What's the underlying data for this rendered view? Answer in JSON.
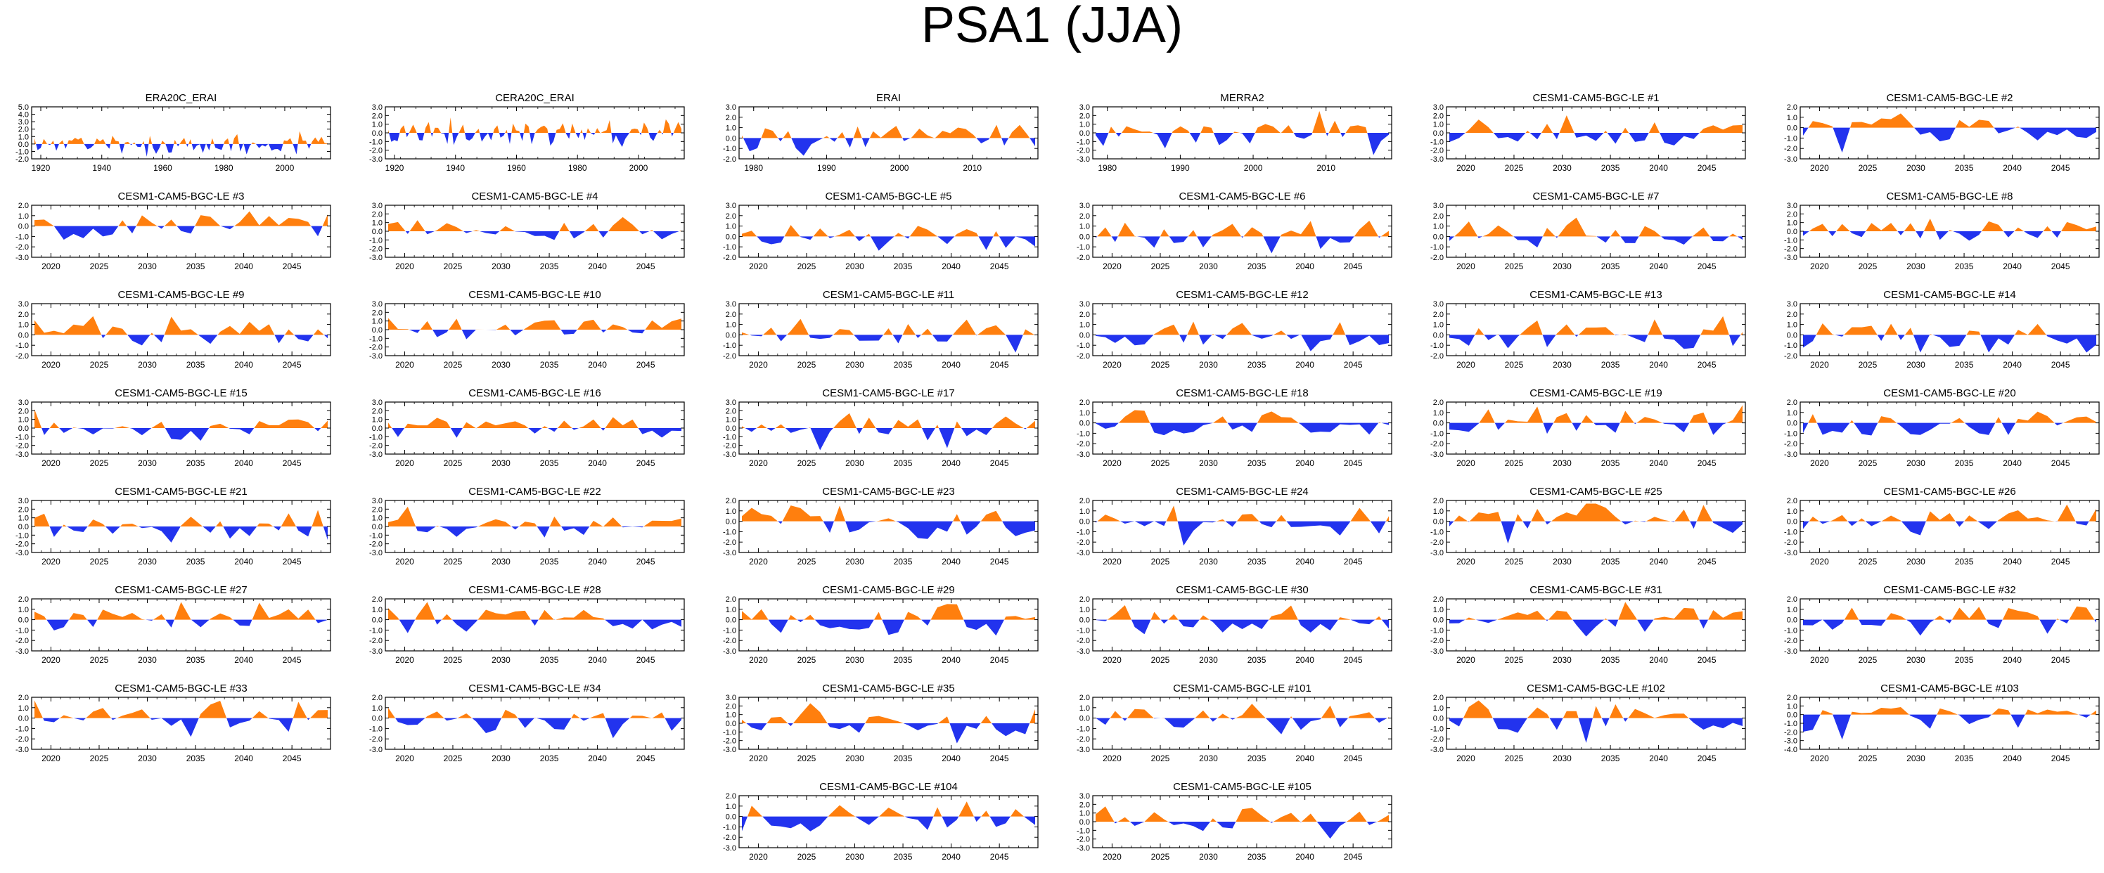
{
  "title": "PSA1 (JJA)",
  "colors": {
    "positive": "#ff7f0e",
    "negative": "#2233ee",
    "axis": "#000000"
  },
  "chart_data": [
    {
      "type": "area",
      "title": "ERA20C_ERAI",
      "ylim": [
        -2.0,
        5.0
      ],
      "yticks": [
        "5.0",
        "4.0",
        "3.0",
        "2.0",
        "1.0",
        "0.0",
        "-1.0",
        "-2.0"
      ],
      "xlim": [
        1917,
        2015
      ],
      "xticks": [
        1920,
        1940,
        1960,
        1980,
        2000
      ],
      "seed": 11
    },
    {
      "type": "area",
      "title": "CERA20C_ERAI",
      "ylim": [
        -3.0,
        3.0
      ],
      "yticks": [
        "3.0",
        "2.0",
        "1.0",
        "0.0",
        "-1.0",
        "-2.0",
        "-3.0"
      ],
      "xlim": [
        1917,
        2015
      ],
      "xticks": [
        1920,
        1940,
        1960,
        1980,
        2000
      ],
      "seed": 12
    },
    {
      "type": "area",
      "title": "ERAI",
      "ylim": [
        -2.0,
        3.0
      ],
      "yticks": [
        "3.0",
        "2.0",
        "1.0",
        "0.0",
        "-1.0",
        "-2.0"
      ],
      "xlim": [
        1978,
        2019
      ],
      "xticks": [
        1980,
        1990,
        2000,
        2010
      ],
      "seed": 13
    },
    {
      "type": "area",
      "title": "MERRA2",
      "ylim": [
        -3.0,
        3.0
      ],
      "yticks": [
        "3.0",
        "2.0",
        "1.0",
        "0.0",
        "-1.0",
        "-2.0",
        "-3.0"
      ],
      "xlim": [
        1978,
        2019
      ],
      "xticks": [
        1980,
        1990,
        2000,
        2010
      ],
      "seed": 14
    },
    {
      "type": "area",
      "title": "CESM1-CAM5-BGC-LE #1",
      "ylim": [
        -3.0,
        3.0
      ],
      "yticks": [
        "3.0",
        "2.0",
        "1.0",
        "0.0",
        "-1.0",
        "-2.0",
        "-3.0"
      ],
      "xlim": [
        2018,
        2049
      ],
      "xticks": [
        2020,
        2025,
        2030,
        2035,
        2040,
        2045
      ],
      "seed": 15
    },
    {
      "type": "area",
      "title": "CESM1-CAM5-BGC-LE #2",
      "ylim": [
        -3.0,
        2.0
      ],
      "yticks": [
        "2.0",
        "1.0",
        "0.0",
        "-1.0",
        "-2.0",
        "-3.0"
      ],
      "xlim": [
        2018,
        2049
      ],
      "xticks": [
        2020,
        2025,
        2030,
        2035,
        2040,
        2045
      ],
      "seed": 16
    },
    {
      "type": "area",
      "title": "CESM1-CAM5-BGC-LE #3",
      "ylim": [
        -3.0,
        2.0
      ],
      "yticks": [
        "2.0",
        "1.0",
        "0.0",
        "-1.0",
        "-2.0",
        "-3.0"
      ],
      "xlim": [
        2018,
        2049
      ],
      "xticks": [
        2020,
        2025,
        2030,
        2035,
        2040,
        2045
      ],
      "seed": 17
    },
    {
      "type": "area",
      "title": "CESM1-CAM5-BGC-LE #4",
      "ylim": [
        -3.0,
        3.0
      ],
      "yticks": [
        "3.0",
        "2.0",
        "1.0",
        "0.0",
        "-1.0",
        "-2.0",
        "-3.0"
      ],
      "xlim": [
        2018,
        2049
      ],
      "xticks": [
        2020,
        2025,
        2030,
        2035,
        2040,
        2045
      ],
      "seed": 18
    },
    {
      "type": "area",
      "title": "CESM1-CAM5-BGC-LE #5",
      "ylim": [
        -2.0,
        3.0
      ],
      "yticks": [
        "3.0",
        "2.0",
        "1.0",
        "0.0",
        "-1.0",
        "-2.0"
      ],
      "xlim": [
        2018,
        2049
      ],
      "xticks": [
        2020,
        2025,
        2030,
        2035,
        2040,
        2045
      ],
      "seed": 19
    },
    {
      "type": "area",
      "title": "CESM1-CAM5-BGC-LE #6",
      "ylim": [
        -2.0,
        3.0
      ],
      "yticks": [
        "3.0",
        "2.0",
        "1.0",
        "0.0",
        "-1.0",
        "-2.0"
      ],
      "xlim": [
        2018,
        2049
      ],
      "xticks": [
        2020,
        2025,
        2030,
        2035,
        2040,
        2045
      ],
      "seed": 20
    },
    {
      "type": "area",
      "title": "CESM1-CAM5-BGC-LE #7",
      "ylim": [
        -2.0,
        3.0
      ],
      "yticks": [
        "3.0",
        "2.0",
        "1.0",
        "0.0",
        "-1.0",
        "-2.0"
      ],
      "xlim": [
        2018,
        2049
      ],
      "xticks": [
        2020,
        2025,
        2030,
        2035,
        2040,
        2045
      ],
      "seed": 21
    },
    {
      "type": "area",
      "title": "CESM1-CAM5-BGC-LE #8",
      "ylim": [
        -3.0,
        3.0
      ],
      "yticks": [
        "3.0",
        "2.0",
        "1.0",
        "0.0",
        "-1.0",
        "-2.0",
        "-3.0"
      ],
      "xlim": [
        2018,
        2049
      ],
      "xticks": [
        2020,
        2025,
        2030,
        2035,
        2040,
        2045
      ],
      "seed": 22
    },
    {
      "type": "area",
      "title": "CESM1-CAM5-BGC-LE #9",
      "ylim": [
        -2.0,
        3.0
      ],
      "yticks": [
        "3.0",
        "2.0",
        "1.0",
        "0.0",
        "-1.0",
        "-2.0"
      ],
      "xlim": [
        2018,
        2049
      ],
      "xticks": [
        2020,
        2025,
        2030,
        2035,
        2040,
        2045
      ],
      "seed": 23
    },
    {
      "type": "area",
      "title": "CESM1-CAM5-BGC-LE #10",
      "ylim": [
        -3.0,
        3.0
      ],
      "yticks": [
        "3.0",
        "2.0",
        "1.0",
        "0.0",
        "-1.0",
        "-2.0",
        "-3.0"
      ],
      "xlim": [
        2018,
        2049
      ],
      "xticks": [
        2020,
        2025,
        2030,
        2035,
        2040,
        2045
      ],
      "seed": 24
    },
    {
      "type": "area",
      "title": "CESM1-CAM5-BGC-LE #11",
      "ylim": [
        -2.0,
        3.0
      ],
      "yticks": [
        "3.0",
        "2.0",
        "1.0",
        "0.0",
        "-1.0",
        "-2.0"
      ],
      "xlim": [
        2018,
        2049
      ],
      "xticks": [
        2020,
        2025,
        2030,
        2035,
        2040,
        2045
      ],
      "seed": 25
    },
    {
      "type": "area",
      "title": "CESM1-CAM5-BGC-LE #12",
      "ylim": [
        -2.0,
        3.0
      ],
      "yticks": [
        "3.0",
        "2.0",
        "1.0",
        "0.0",
        "-1.0",
        "-2.0"
      ],
      "xlim": [
        2018,
        2049
      ],
      "xticks": [
        2020,
        2025,
        2030,
        2035,
        2040,
        2045
      ],
      "seed": 26
    },
    {
      "type": "area",
      "title": "CESM1-CAM5-BGC-LE #13",
      "ylim": [
        -2.0,
        3.0
      ],
      "yticks": [
        "3.0",
        "2.0",
        "1.0",
        "0.0",
        "-1.0",
        "-2.0"
      ],
      "xlim": [
        2018,
        2049
      ],
      "xticks": [
        2020,
        2025,
        2030,
        2035,
        2040,
        2045
      ],
      "seed": 27
    },
    {
      "type": "area",
      "title": "CESM1-CAM5-BGC-LE #14",
      "ylim": [
        -2.0,
        3.0
      ],
      "yticks": [
        "3.0",
        "2.0",
        "1.0",
        "0.0",
        "-1.0",
        "-2.0"
      ],
      "xlim": [
        2018,
        2049
      ],
      "xticks": [
        2020,
        2025,
        2030,
        2035,
        2040,
        2045
      ],
      "seed": 28
    },
    {
      "type": "area",
      "title": "CESM1-CAM5-BGC-LE #15",
      "ylim": [
        -3.0,
        3.0
      ],
      "yticks": [
        "3.0",
        "2.0",
        "1.0",
        "0.0",
        "-1.0",
        "-2.0",
        "-3.0"
      ],
      "xlim": [
        2018,
        2049
      ],
      "xticks": [
        2020,
        2025,
        2030,
        2035,
        2040,
        2045
      ],
      "seed": 29
    },
    {
      "type": "area",
      "title": "CESM1-CAM5-BGC-LE #16",
      "ylim": [
        -3.0,
        3.0
      ],
      "yticks": [
        "3.0",
        "2.0",
        "1.0",
        "0.0",
        "-1.0",
        "-2.0",
        "-3.0"
      ],
      "xlim": [
        2018,
        2049
      ],
      "xticks": [
        2020,
        2025,
        2030,
        2035,
        2040,
        2045
      ],
      "seed": 30
    },
    {
      "type": "area",
      "title": "CESM1-CAM5-BGC-LE #17",
      "ylim": [
        -3.0,
        3.0
      ],
      "yticks": [
        "3.0",
        "2.0",
        "1.0",
        "0.0",
        "-1.0",
        "-2.0",
        "-3.0"
      ],
      "xlim": [
        2018,
        2049
      ],
      "xticks": [
        2020,
        2025,
        2030,
        2035,
        2040,
        2045
      ],
      "seed": 31
    },
    {
      "type": "area",
      "title": "CESM1-CAM5-BGC-LE #18",
      "ylim": [
        -3.0,
        2.0
      ],
      "yticks": [
        "2.0",
        "1.0",
        "0.0",
        "-1.0",
        "-2.0",
        "-3.0"
      ],
      "xlim": [
        2018,
        2049
      ],
      "xticks": [
        2020,
        2025,
        2030,
        2035,
        2040,
        2045
      ],
      "seed": 32
    },
    {
      "type": "area",
      "title": "CESM1-CAM5-BGC-LE #19",
      "ylim": [
        -3.0,
        2.0
      ],
      "yticks": [
        "2.0",
        "1.0",
        "0.0",
        "-1.0",
        "-2.0",
        "-3.0"
      ],
      "xlim": [
        2018,
        2049
      ],
      "xticks": [
        2020,
        2025,
        2030,
        2035,
        2040,
        2045
      ],
      "seed": 33
    },
    {
      "type": "area",
      "title": "CESM1-CAM5-BGC-LE #20",
      "ylim": [
        -3.0,
        2.0
      ],
      "yticks": [
        "2.0",
        "1.0",
        "0.0",
        "-1.0",
        "-2.0",
        "-3.0"
      ],
      "xlim": [
        2018,
        2049
      ],
      "xticks": [
        2020,
        2025,
        2030,
        2035,
        2040,
        2045
      ],
      "seed": 34
    },
    {
      "type": "area",
      "title": "CESM1-CAM5-BGC-LE #21",
      "ylim": [
        -3.0,
        3.0
      ],
      "yticks": [
        "3.0",
        "2.0",
        "1.0",
        "0.0",
        "-1.0",
        "-2.0",
        "-3.0"
      ],
      "xlim": [
        2018,
        2049
      ],
      "xticks": [
        2020,
        2025,
        2030,
        2035,
        2040,
        2045
      ],
      "seed": 35
    },
    {
      "type": "area",
      "title": "CESM1-CAM5-BGC-LE #22",
      "ylim": [
        -3.0,
        3.0
      ],
      "yticks": [
        "3.0",
        "2.0",
        "1.0",
        "0.0",
        "-1.0",
        "-2.0",
        "-3.0"
      ],
      "xlim": [
        2018,
        2049
      ],
      "xticks": [
        2020,
        2025,
        2030,
        2035,
        2040,
        2045
      ],
      "seed": 36
    },
    {
      "type": "area",
      "title": "CESM1-CAM5-BGC-LE #23",
      "ylim": [
        -3.0,
        2.0
      ],
      "yticks": [
        "2.0",
        "1.0",
        "0.0",
        "-1.0",
        "-2.0",
        "-3.0"
      ],
      "xlim": [
        2018,
        2049
      ],
      "xticks": [
        2020,
        2025,
        2030,
        2035,
        2040,
        2045
      ],
      "seed": 37
    },
    {
      "type": "area",
      "title": "CESM1-CAM5-BGC-LE #24",
      "ylim": [
        -3.0,
        2.0
      ],
      "yticks": [
        "2.0",
        "1.0",
        "0.0",
        "-1.0",
        "-2.0",
        "-3.0"
      ],
      "xlim": [
        2018,
        2049
      ],
      "xticks": [
        2020,
        2025,
        2030,
        2035,
        2040,
        2045
      ],
      "seed": 38
    },
    {
      "type": "area",
      "title": "CESM1-CAM5-BGC-LE #25",
      "ylim": [
        -3.0,
        2.0
      ],
      "yticks": [
        "2.0",
        "1.0",
        "0.0",
        "-1.0",
        "-2.0",
        "-3.0"
      ],
      "xlim": [
        2018,
        2049
      ],
      "xticks": [
        2020,
        2025,
        2030,
        2035,
        2040,
        2045
      ],
      "seed": 39
    },
    {
      "type": "area",
      "title": "CESM1-CAM5-BGC-LE #26",
      "ylim": [
        -3.0,
        2.0
      ],
      "yticks": [
        "2.0",
        "1.0",
        "0.0",
        "-1.0",
        "-2.0",
        "-3.0"
      ],
      "xlim": [
        2018,
        2049
      ],
      "xticks": [
        2020,
        2025,
        2030,
        2035,
        2040,
        2045
      ],
      "seed": 40
    },
    {
      "type": "area",
      "title": "CESM1-CAM5-BGC-LE #27",
      "ylim": [
        -3.0,
        2.0
      ],
      "yticks": [
        "2.0",
        "1.0",
        "0.0",
        "-1.0",
        "-2.0",
        "-3.0"
      ],
      "xlim": [
        2018,
        2049
      ],
      "xticks": [
        2020,
        2025,
        2030,
        2035,
        2040,
        2045
      ],
      "seed": 41
    },
    {
      "type": "area",
      "title": "CESM1-CAM5-BGC-LE #28",
      "ylim": [
        -3.0,
        2.0
      ],
      "yticks": [
        "2.0",
        "1.0",
        "0.0",
        "-1.0",
        "-2.0",
        "-3.0"
      ],
      "xlim": [
        2018,
        2049
      ],
      "xticks": [
        2020,
        2025,
        2030,
        2035,
        2040,
        2045
      ],
      "seed": 42
    },
    {
      "type": "area",
      "title": "CESM1-CAM5-BGC-LE #29",
      "ylim": [
        -3.0,
        2.0
      ],
      "yticks": [
        "2.0",
        "1.0",
        "0.0",
        "-1.0",
        "-2.0",
        "-3.0"
      ],
      "xlim": [
        2018,
        2049
      ],
      "xticks": [
        2020,
        2025,
        2030,
        2035,
        2040,
        2045
      ],
      "seed": 43
    },
    {
      "type": "area",
      "title": "CESM1-CAM5-BGC-LE #30",
      "ylim": [
        -3.0,
        2.0
      ],
      "yticks": [
        "2.0",
        "1.0",
        "0.0",
        "-1.0",
        "-2.0",
        "-3.0"
      ],
      "xlim": [
        2018,
        2049
      ],
      "xticks": [
        2020,
        2025,
        2030,
        2035,
        2040,
        2045
      ],
      "seed": 44
    },
    {
      "type": "area",
      "title": "CESM1-CAM5-BGC-LE #31",
      "ylim": [
        -3.0,
        2.0
      ],
      "yticks": [
        "2.0",
        "1.0",
        "0.0",
        "-1.0",
        "-2.0",
        "-3.0"
      ],
      "xlim": [
        2018,
        2049
      ],
      "xticks": [
        2020,
        2025,
        2030,
        2035,
        2040,
        2045
      ],
      "seed": 45
    },
    {
      "type": "area",
      "title": "CESM1-CAM5-BGC-LE #32",
      "ylim": [
        -3.0,
        2.0
      ],
      "yticks": [
        "2.0",
        "1.0",
        "0.0",
        "-1.0",
        "-2.0",
        "-3.0"
      ],
      "xlim": [
        2018,
        2049
      ],
      "xticks": [
        2020,
        2025,
        2030,
        2035,
        2040,
        2045
      ],
      "seed": 46
    },
    {
      "type": "area",
      "title": "CESM1-CAM5-BGC-LE #33",
      "ylim": [
        -3.0,
        2.0
      ],
      "yticks": [
        "2.0",
        "1.0",
        "0.0",
        "-1.0",
        "-2.0",
        "-3.0"
      ],
      "xlim": [
        2018,
        2049
      ],
      "xticks": [
        2020,
        2025,
        2030,
        2035,
        2040,
        2045
      ],
      "seed": 47
    },
    {
      "type": "area",
      "title": "CESM1-CAM5-BGC-LE #34",
      "ylim": [
        -3.0,
        2.0
      ],
      "yticks": [
        "2.0",
        "1.0",
        "0.0",
        "-1.0",
        "-2.0",
        "-3.0"
      ],
      "xlim": [
        2018,
        2049
      ],
      "xticks": [
        2020,
        2025,
        2030,
        2035,
        2040,
        2045
      ],
      "seed": 48
    },
    {
      "type": "area",
      "title": "CESM1-CAM5-BGC-LE #35",
      "ylim": [
        -3.0,
        3.0
      ],
      "yticks": [
        "3.0",
        "2.0",
        "1.0",
        "0.0",
        "-1.0",
        "-2.0",
        "-3.0"
      ],
      "xlim": [
        2018,
        2049
      ],
      "xticks": [
        2020,
        2025,
        2030,
        2035,
        2040,
        2045
      ],
      "seed": 49
    },
    {
      "type": "area",
      "title": "CESM1-CAM5-BGC-LE #101",
      "ylim": [
        -3.0,
        2.0
      ],
      "yticks": [
        "2.0",
        "1.0",
        "0.0",
        "-1.0",
        "-2.0",
        "-3.0"
      ],
      "xlim": [
        2018,
        2049
      ],
      "xticks": [
        2020,
        2025,
        2030,
        2035,
        2040,
        2045
      ],
      "seed": 50
    },
    {
      "type": "area",
      "title": "CESM1-CAM5-BGC-LE #102",
      "ylim": [
        -3.0,
        2.0
      ],
      "yticks": [
        "2.0",
        "1.0",
        "0.0",
        "-1.0",
        "-2.0",
        "-3.0"
      ],
      "xlim": [
        2018,
        2049
      ],
      "xticks": [
        2020,
        2025,
        2030,
        2035,
        2040,
        2045
      ],
      "seed": 51
    },
    {
      "type": "area",
      "title": "CESM1-CAM5-BGC-LE #103",
      "ylim": [
        -4.0,
        2.0
      ],
      "yticks": [
        "2.0",
        "1.0",
        "0.0",
        "-1.0",
        "-2.0",
        "-3.0",
        "-4.0"
      ],
      "xlim": [
        2018,
        2049
      ],
      "xticks": [
        2020,
        2025,
        2030,
        2035,
        2040,
        2045
      ],
      "seed": 52
    },
    {
      "type": "area",
      "title": "CESM1-CAM5-BGC-LE #104",
      "ylim": [
        -3.0,
        2.0
      ],
      "yticks": [
        "2.0",
        "1.0",
        "0.0",
        "-1.0",
        "-2.0",
        "-3.0"
      ],
      "xlim": [
        2018,
        2049
      ],
      "xticks": [
        2020,
        2025,
        2030,
        2035,
        2040,
        2045
      ],
      "seed": 53
    },
    {
      "type": "area",
      "title": "CESM1-CAM5-BGC-LE #105",
      "ylim": [
        -3.0,
        3.0
      ],
      "yticks": [
        "3.0",
        "2.0",
        "1.0",
        "0.0",
        "-1.0",
        "-2.0",
        "-3.0"
      ],
      "xlim": [
        2018,
        2049
      ],
      "xticks": [
        2020,
        2025,
        2030,
        2035,
        2040,
        2045
      ],
      "seed": 54
    }
  ]
}
